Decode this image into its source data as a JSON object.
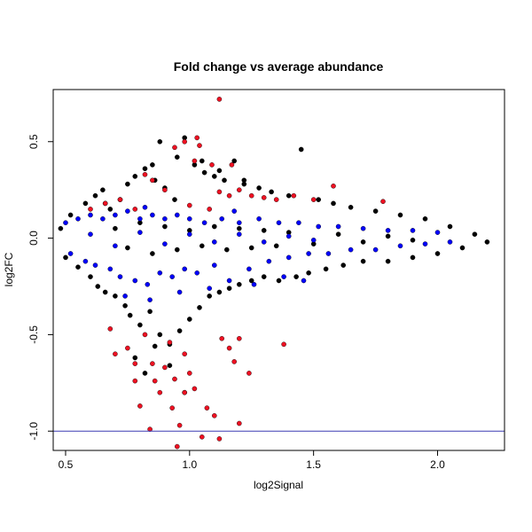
{
  "chart_data": {
    "type": "scatter",
    "title": "Fold change vs average abundance",
    "xlabel": "log2Signal",
    "ylabel": "log2FC",
    "xlim": [
      0.45,
      2.27
    ],
    "ylim": [
      -1.1,
      0.77
    ],
    "x_ticks": [
      0.5,
      1.0,
      1.5,
      2.0
    ],
    "x_tick_labels": [
      "0.5",
      "1.0",
      "1.5",
      "2.0"
    ],
    "y_ticks": [
      -1.0,
      -0.5,
      0.0,
      0.5
    ],
    "y_tick_labels": [
      "-1.0",
      "-0.5",
      "0.0",
      "0.5"
    ],
    "grid": false,
    "reference_line": {
      "y": -1.0,
      "color": "#3b3bb3"
    },
    "series": [
      {
        "color": "#000000",
        "points": [
          [
            0.48,
            0.05
          ],
          [
            0.5,
            -0.1
          ],
          [
            0.52,
            0.12
          ],
          [
            0.55,
            -0.15
          ],
          [
            0.58,
            0.18
          ],
          [
            0.6,
            -0.2
          ],
          [
            0.62,
            0.22
          ],
          [
            0.63,
            -0.25
          ],
          [
            0.65,
            0.25
          ],
          [
            0.66,
            -0.28
          ],
          [
            0.68,
            0.15
          ],
          [
            0.7,
            -0.3
          ],
          [
            0.72,
            0.2
          ],
          [
            0.74,
            -0.35
          ],
          [
            0.75,
            0.28
          ],
          [
            0.76,
            -0.4
          ],
          [
            0.78,
            0.32
          ],
          [
            0.8,
            -0.45
          ],
          [
            0.82,
            0.36
          ],
          [
            0.84,
            -0.38
          ],
          [
            0.86,
            0.3
          ],
          [
            0.88,
            -0.5
          ],
          [
            0.88,
            0.5
          ],
          [
            0.9,
            0.26
          ],
          [
            0.92,
            -0.55
          ],
          [
            0.94,
            0.2
          ],
          [
            0.96,
            -0.48
          ],
          [
            0.98,
            0.52
          ],
          [
            1.0,
            -0.42
          ],
          [
            1.02,
            0.38
          ],
          [
            1.04,
            -0.36
          ],
          [
            1.06,
            0.34
          ],
          [
            1.08,
            -0.3
          ],
          [
            1.1,
            0.32
          ],
          [
            1.12,
            -0.28
          ],
          [
            1.14,
            0.3
          ],
          [
            1.16,
            -0.26
          ],
          [
            1.18,
            0.4
          ],
          [
            1.2,
            -0.24
          ],
          [
            1.22,
            0.28
          ],
          [
            1.25,
            -0.22
          ],
          [
            1.28,
            0.26
          ],
          [
            1.3,
            -0.2
          ],
          [
            1.33,
            0.24
          ],
          [
            1.36,
            -0.22
          ],
          [
            1.4,
            0.22
          ],
          [
            1.43,
            -0.2
          ],
          [
            1.45,
            0.46
          ],
          [
            1.48,
            -0.18
          ],
          [
            1.52,
            0.2
          ],
          [
            1.55,
            -0.16
          ],
          [
            1.58,
            0.18
          ],
          [
            1.62,
            -0.14
          ],
          [
            1.65,
            0.16
          ],
          [
            1.7,
            -0.12
          ],
          [
            1.75,
            0.14
          ],
          [
            1.8,
            -0.12
          ],
          [
            1.85,
            0.12
          ],
          [
            1.9,
            -0.1
          ],
          [
            1.95,
            0.1
          ],
          [
            2.0,
            -0.08
          ],
          [
            2.05,
            0.06
          ],
          [
            2.1,
            -0.05
          ],
          [
            2.15,
            0.02
          ],
          [
            2.2,
            -0.02
          ],
          [
            0.7,
            0.05
          ],
          [
            0.75,
            -0.05
          ],
          [
            0.8,
            0.08
          ],
          [
            0.85,
            -0.08
          ],
          [
            0.9,
            0.06
          ],
          [
            0.95,
            -0.06
          ],
          [
            1.0,
            0.04
          ],
          [
            1.05,
            -0.04
          ],
          [
            1.1,
            0.06
          ],
          [
            1.15,
            -0.06
          ],
          [
            1.2,
            0.05
          ],
          [
            1.25,
            -0.05
          ],
          [
            1.3,
            0.04
          ],
          [
            1.35,
            -0.04
          ],
          [
            1.4,
            0.03
          ],
          [
            1.5,
            -0.03
          ],
          [
            1.6,
            0.02
          ],
          [
            1.7,
            -0.02
          ],
          [
            1.8,
            0.01
          ],
          [
            1.9,
            -0.01
          ],
          [
            0.78,
            -0.62
          ],
          [
            0.82,
            -0.7
          ],
          [
            0.86,
            -0.56
          ],
          [
            0.92,
            -0.66
          ],
          [
            0.98,
            -0.8
          ],
          [
            0.85,
            0.38
          ],
          [
            0.95,
            0.42
          ],
          [
            1.05,
            0.4
          ],
          [
            1.12,
            0.35
          ],
          [
            1.22,
            0.3
          ]
        ]
      },
      {
        "color": "#0000ff",
        "points": [
          [
            0.5,
            0.08
          ],
          [
            0.52,
            -0.08
          ],
          [
            0.55,
            0.1
          ],
          [
            0.58,
            -0.12
          ],
          [
            0.6,
            0.12
          ],
          [
            0.62,
            -0.14
          ],
          [
            0.65,
            0.1
          ],
          [
            0.68,
            -0.16
          ],
          [
            0.7,
            0.12
          ],
          [
            0.72,
            -0.2
          ],
          [
            0.75,
            0.14
          ],
          [
            0.78,
            -0.22
          ],
          [
            0.8,
            0.1
          ],
          [
            0.83,
            -0.24
          ],
          [
            0.85,
            0.12
          ],
          [
            0.88,
            -0.18
          ],
          [
            0.9,
            0.1
          ],
          [
            0.93,
            -0.2
          ],
          [
            0.95,
            0.12
          ],
          [
            0.98,
            -0.16
          ],
          [
            1.0,
            0.1
          ],
          [
            1.03,
            -0.18
          ],
          [
            1.06,
            0.08
          ],
          [
            1.1,
            -0.14
          ],
          [
            1.13,
            0.1
          ],
          [
            1.16,
            -0.22
          ],
          [
            1.2,
            0.08
          ],
          [
            1.24,
            -0.16
          ],
          [
            1.28,
            0.1
          ],
          [
            1.32,
            -0.12
          ],
          [
            1.36,
            0.08
          ],
          [
            1.4,
            -0.1
          ],
          [
            1.44,
            0.08
          ],
          [
            1.48,
            -0.08
          ],
          [
            1.52,
            0.06
          ],
          [
            1.56,
            -0.08
          ],
          [
            1.6,
            0.06
          ],
          [
            1.65,
            -0.06
          ],
          [
            1.7,
            0.05
          ],
          [
            1.75,
            -0.06
          ],
          [
            1.8,
            0.04
          ],
          [
            1.85,
            -0.04
          ],
          [
            1.9,
            0.04
          ],
          [
            1.95,
            -0.03
          ],
          [
            2.0,
            0.03
          ],
          [
            2.05,
            -0.02
          ],
          [
            0.6,
            0.02
          ],
          [
            0.7,
            -0.04
          ],
          [
            0.8,
            0.03
          ],
          [
            0.9,
            -0.03
          ],
          [
            1.0,
            0.02
          ],
          [
            1.1,
            -0.02
          ],
          [
            1.2,
            0.02
          ],
          [
            1.3,
            -0.02
          ],
          [
            1.4,
            0.01
          ],
          [
            1.5,
            -0.01
          ],
          [
            0.74,
            -0.3
          ],
          [
            0.84,
            -0.32
          ],
          [
            0.96,
            -0.28
          ],
          [
            1.08,
            -0.26
          ],
          [
            1.26,
            -0.24
          ],
          [
            1.38,
            -0.2
          ],
          [
            1.46,
            -0.22
          ],
          [
            0.66,
            0.18
          ],
          [
            0.82,
            0.16
          ],
          [
            1.18,
            0.14
          ]
        ]
      },
      {
        "color": "#ee1122",
        "points": [
          [
            1.12,
            0.72
          ],
          [
            0.98,
            0.5
          ],
          [
            1.03,
            0.52
          ],
          [
            0.94,
            0.47
          ],
          [
            1.04,
            0.48
          ],
          [
            1.02,
            0.4
          ],
          [
            1.09,
            0.38
          ],
          [
            1.17,
            0.38
          ],
          [
            0.82,
            0.33
          ],
          [
            0.85,
            0.3
          ],
          [
            0.9,
            0.25
          ],
          [
            1.12,
            0.24
          ],
          [
            1.16,
            0.22
          ],
          [
            1.2,
            0.25
          ],
          [
            1.25,
            0.22
          ],
          [
            1.3,
            0.21
          ],
          [
            1.35,
            0.2
          ],
          [
            1.42,
            0.22
          ],
          [
            1.5,
            0.2
          ],
          [
            1.58,
            0.27
          ],
          [
            1.78,
            0.19
          ],
          [
            0.6,
            0.15
          ],
          [
            0.66,
            0.18
          ],
          [
            0.72,
            0.2
          ],
          [
            0.78,
            0.15
          ],
          [
            1.0,
            0.17
          ],
          [
            1.08,
            0.15
          ],
          [
            0.68,
            -0.47
          ],
          [
            0.7,
            -0.6
          ],
          [
            0.75,
            -0.57
          ],
          [
            0.78,
            -0.65
          ],
          [
            0.78,
            -0.74
          ],
          [
            0.8,
            -0.87
          ],
          [
            0.82,
            -0.5
          ],
          [
            0.85,
            -0.65
          ],
          [
            0.86,
            -0.74
          ],
          [
            0.88,
            -0.8
          ],
          [
            0.9,
            -0.67
          ],
          [
            0.92,
            -0.54
          ],
          [
            0.93,
            -0.88
          ],
          [
            0.94,
            -0.73
          ],
          [
            0.96,
            -0.97
          ],
          [
            0.98,
            -0.6
          ],
          [
            0.98,
            -0.8
          ],
          [
            1.0,
            -0.7
          ],
          [
            1.02,
            -0.78
          ],
          [
            1.05,
            -1.03
          ],
          [
            1.07,
            -0.88
          ],
          [
            1.1,
            -0.92
          ],
          [
            1.12,
            -1.04
          ],
          [
            1.13,
            -0.52
          ],
          [
            1.16,
            -0.57
          ],
          [
            1.18,
            -0.64
          ],
          [
            1.2,
            -0.96
          ],
          [
            1.24,
            -0.7
          ],
          [
            1.38,
            -0.55
          ],
          [
            0.84,
            -0.99
          ],
          [
            0.95,
            -1.08
          ],
          [
            1.2,
            -0.52
          ]
        ]
      }
    ]
  }
}
